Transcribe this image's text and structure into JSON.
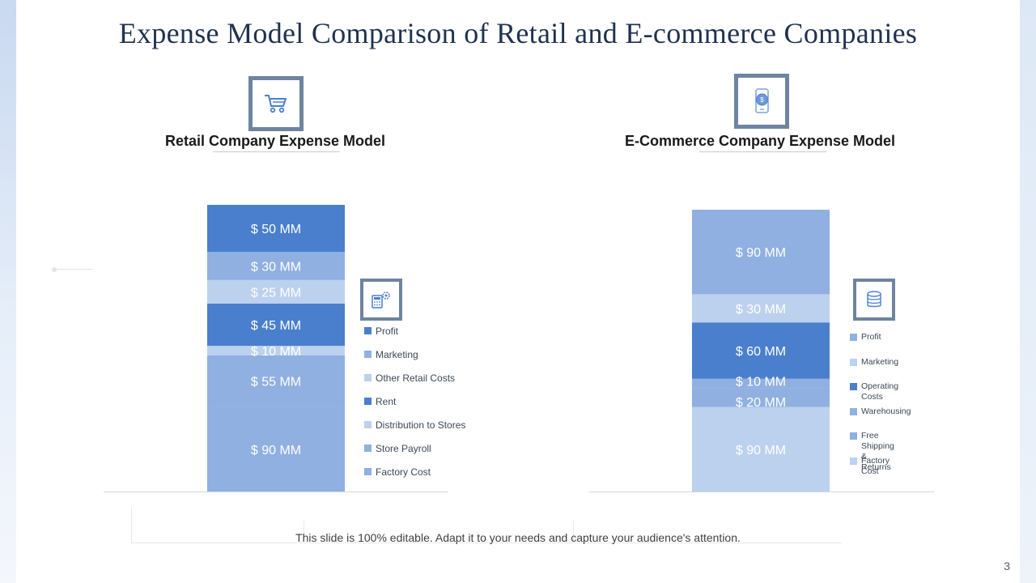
{
  "slide": {
    "title": "Expense Model Comparison of Retail and E-commerce Companies",
    "footer": "This slide is 100% editable. Adapt it to your needs and capture your audience's attention.",
    "page_number": "3"
  },
  "icons": {
    "retail_header": "shopping-cart-icon",
    "retail_legend": "calculator-gear-icon",
    "ecommerce_header": "mobile-payment-icon",
    "ecommerce_legend": "coin-stack-icon"
  },
  "colors": {
    "dark_blue": "#4a7fcd",
    "medium_blue": "#8fb0e1",
    "light_blue": "#bcd1ee",
    "icon_border": "#6e84a0"
  },
  "chart_data": [
    {
      "type": "bar",
      "stacked": true,
      "title": "Retail Company Expense Model",
      "categories": [
        "Retail Company"
      ],
      "unit_prefix": "$",
      "unit_suffix": "MM",
      "series": [
        {
          "name": "Factory Cost",
          "values": [
            90
          ],
          "label": "$ 90 MM",
          "color": "#8fb0e1"
        },
        {
          "name": "Store Payroll",
          "values": [
            55
          ],
          "label": "$ 55 MM",
          "color": "#8fb0e1"
        },
        {
          "name": "Distribution to Stores",
          "values": [
            10
          ],
          "label": "$ 10 MM",
          "color": "#bcd1ee"
        },
        {
          "name": "Rent",
          "values": [
            45
          ],
          "label": "$ 45 MM",
          "color": "#4a7fcd"
        },
        {
          "name": "Other Retail Costs",
          "values": [
            25
          ],
          "label": "$ 25 MM",
          "color": "#bcd1ee"
        },
        {
          "name": "Marketing",
          "values": [
            30
          ],
          "label": "$ 30 MM",
          "color": "#8fb0e1"
        },
        {
          "name": "Profit",
          "values": [
            50
          ],
          "label": "$ 50 MM",
          "color": "#4a7fcd"
        }
      ],
      "legend": [
        "Profit",
        "Marketing",
        "Other Retail Costs",
        "Rent",
        "Distribution to Stores",
        "Store Payroll",
        "Factory Cost"
      ],
      "legend_colors": [
        "#4a7fcd",
        "#8fb0e1",
        "#bcd1ee",
        "#4a7fcd",
        "#bcd1ee",
        "#8fb0e1",
        "#8fb0e1"
      ]
    },
    {
      "type": "bar",
      "stacked": true,
      "title": "E-Commerce Company Expense Model",
      "categories": [
        "E-Commerce Company"
      ],
      "unit_prefix": "$",
      "unit_suffix": "MM",
      "series": [
        {
          "name": "Factory Cost",
          "values": [
            90
          ],
          "label": "$ 90 MM",
          "color": "#bcd1ee"
        },
        {
          "name": "Free Shipping & Returns",
          "values": [
            20
          ],
          "label": "$ 20 MM",
          "color": "#8fb0e1"
        },
        {
          "name": "Warehousing",
          "values": [
            10
          ],
          "label": "$ 10 MM",
          "color": "#8fb0e1"
        },
        {
          "name": "Operating Costs",
          "values": [
            60
          ],
          "label": "$ 60 MM",
          "color": "#4a7fcd"
        },
        {
          "name": "Marketing",
          "values": [
            30
          ],
          "label": "$ 30 MM",
          "color": "#bcd1ee"
        },
        {
          "name": "Profit",
          "values": [
            90
          ],
          "label": "$ 90 MM",
          "color": "#8fb0e1"
        }
      ],
      "legend": [
        "Profit",
        "Marketing",
        "Operating Costs",
        "Warehousing",
        "Free Shipping\n& Returns",
        "Factory Cost"
      ],
      "legend_colors": [
        "#8fb0e1",
        "#bcd1ee",
        "#4a7fcd",
        "#8fb0e1",
        "#8fb0e1",
        "#bcd1ee"
      ]
    }
  ]
}
